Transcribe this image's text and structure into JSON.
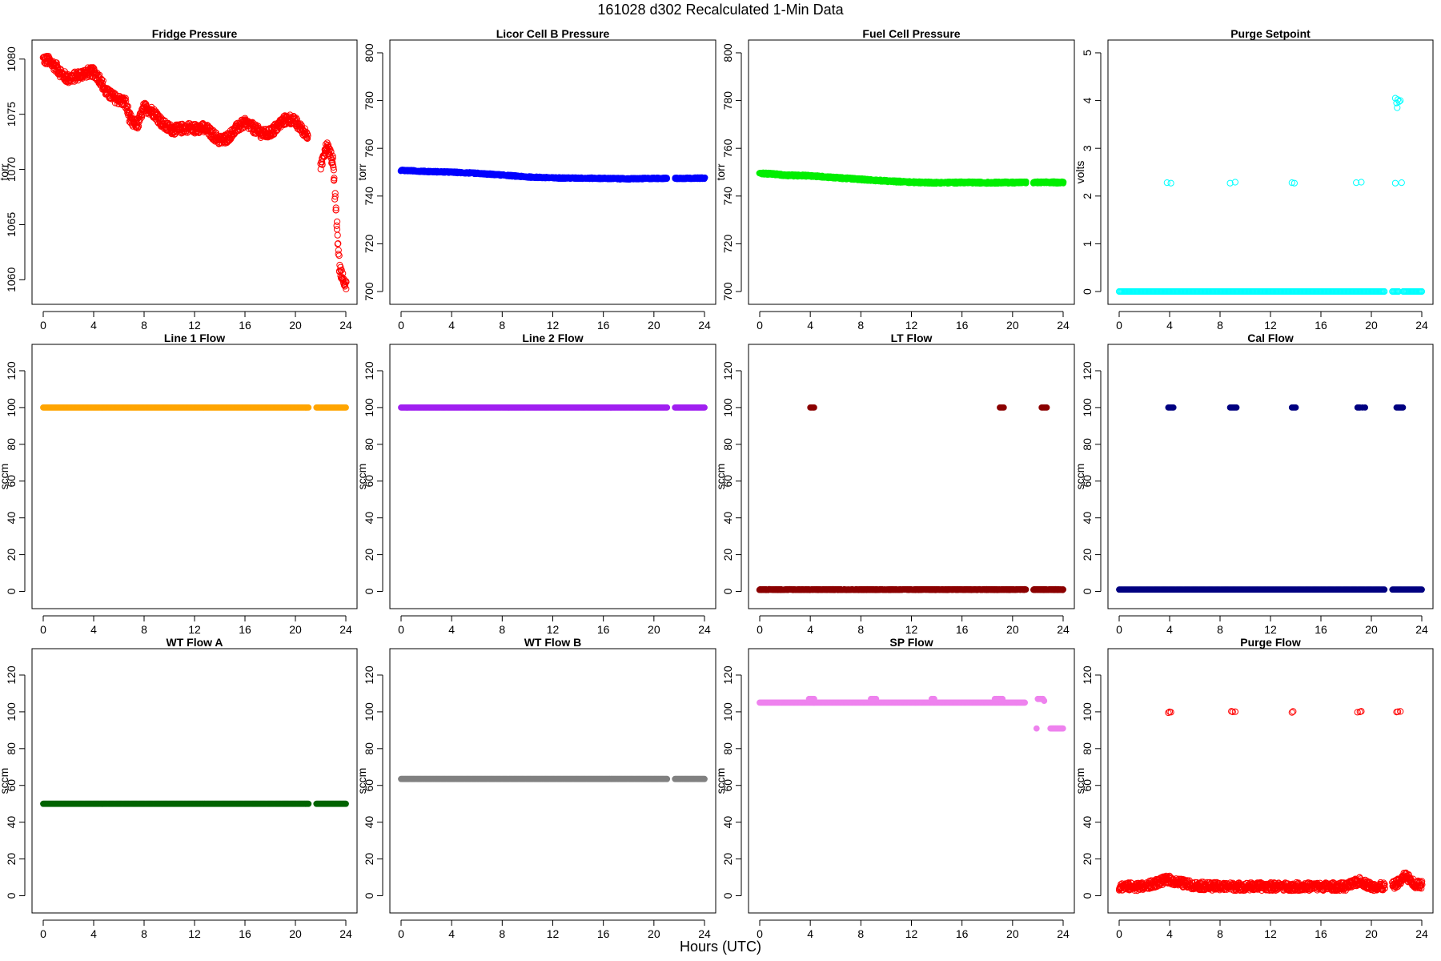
{
  "figure": {
    "title": "161028   d302   Recalculated 1-Min Data",
    "xlabel": "Hours (UTC)"
  },
  "chart_data": [
    {
      "type": "scatter",
      "title": "Fridge Pressure",
      "ylabel": "torr",
      "color": "#ff0000",
      "marker": "open-circle",
      "xlim": [
        0,
        24
      ],
      "ylim": [
        1058.5,
        1081
      ],
      "xticks": [
        0,
        4,
        8,
        12,
        16,
        20,
        24
      ],
      "yticks": [
        1060,
        1065,
        1070,
        1075,
        1080
      ],
      "series": [
        {
          "x": [
            0,
            0.5,
            1,
            1.5,
            2,
            2.5,
            3,
            3.5,
            4,
            4.5,
            5,
            5.5,
            6,
            6.5,
            7,
            7.5,
            8,
            8.5,
            9,
            9.5,
            10,
            10.5,
            11,
            11.5,
            12,
            12.5,
            13,
            13.5,
            14,
            14.5,
            15,
            15.5,
            16,
            16.5,
            17,
            17.5,
            18,
            18.5,
            19,
            19.5,
            20,
            20.5,
            21,
            21.5,
            22,
            22.5,
            23,
            23.5,
            24
          ],
          "y": [
            1080,
            1079.8,
            1079.3,
            1078.6,
            1078.2,
            1078.4,
            1078.6,
            1078.8,
            1078.8,
            1078.2,
            1077,
            1076.6,
            1076.3,
            1076.1,
            1074.2,
            1074.1,
            1075.6,
            1075.4,
            1074.9,
            1074.1,
            1073.7,
            1073.6,
            1073.7,
            1073.8,
            1073.7,
            1073.8,
            1073.6,
            1073.1,
            1072.6,
            1072.8,
            1073.3,
            1073.9,
            1074.2,
            1073.9,
            1073.5,
            1073.2,
            1073.3,
            1073.8,
            1074.4,
            1074.6,
            1074.3,
            1073.6,
            1073.2,
            null,
            1070.2,
            1072.2,
            1070.6,
            1061,
            1059.5
          ],
          "jitter": 0.45
        }
      ]
    },
    {
      "type": "scatter",
      "title": "Licor Cell B Pressure",
      "ylabel": "torr",
      "color": "#0000ff",
      "marker": "filled",
      "xlim": [
        0,
        24
      ],
      "ylim": [
        698,
        802
      ],
      "xticks": [
        0,
        4,
        8,
        12,
        16,
        20,
        24
      ],
      "yticks": [
        700,
        720,
        740,
        760,
        780,
        800
      ],
      "series": [
        {
          "x": [
            0,
            2,
            4,
            6,
            8,
            10,
            12,
            14,
            16,
            18,
            20,
            21,
            21.6,
            24
          ],
          "y": [
            750.8,
            750.3,
            750,
            749.5,
            748.8,
            748,
            747.6,
            747.5,
            747.4,
            747.2,
            747.4,
            747.4,
            747.4,
            747.5
          ],
          "gaps": [
            [
              21.05,
              21.6
            ]
          ],
          "jitter": 0.3
        }
      ]
    },
    {
      "type": "scatter",
      "title": "Fuel Cell Pressure",
      "ylabel": "torr",
      "color": "#00ee00",
      "marker": "filled",
      "xlim": [
        0,
        24
      ],
      "ylim": [
        698,
        802
      ],
      "xticks": [
        0,
        4,
        8,
        12,
        16,
        20,
        24
      ],
      "yticks": [
        700,
        720,
        740,
        760,
        780,
        800
      ],
      "series": [
        {
          "x": [
            0,
            1,
            2,
            4,
            6,
            8,
            10,
            12,
            14,
            16,
            18,
            20,
            21,
            21.6,
            24
          ],
          "y": [
            749.5,
            749.3,
            748.7,
            748.5,
            747.7,
            747,
            746.3,
            745.8,
            745.6,
            745.7,
            745.6,
            745.7,
            745.7,
            745.7,
            745.7
          ],
          "gaps": [
            [
              21.05,
              21.6
            ]
          ],
          "jitter": 0.4
        }
      ]
    },
    {
      "type": "scatter",
      "title": "Purge Setpoint",
      "ylabel": "volts",
      "color": "#00ffff",
      "marker": "open-circle",
      "xlim": [
        0,
        24
      ],
      "ylim": [
        -0.1,
        5.1
      ],
      "xticks": [
        0,
        4,
        8,
        12,
        16,
        20,
        24
      ],
      "yticks": [
        0,
        1,
        2,
        3,
        4,
        5
      ],
      "series": [
        {
          "x": [
            0,
            21,
            21.6,
            24
          ],
          "y": [
            0,
            0,
            0,
            0
          ],
          "gaps": [
            [
              21.05,
              21.6
            ],
            [
              22.2,
              22.5
            ]
          ],
          "jitter": 0
        },
        {
          "x": [
            3.8,
            4.1,
            8.8,
            9.2,
            13.7,
            13.9,
            18.8,
            19.2,
            21.9,
            22.4
          ],
          "y": [
            2.28,
            2.27,
            2.27,
            2.29,
            2.28,
            2.27,
            2.28,
            2.29,
            2.27,
            2.28
          ],
          "points": true
        },
        {
          "x": [
            21.9,
            22.0,
            22.1,
            22.2,
            22.3,
            22.05
          ],
          "y": [
            4.05,
            3.95,
            4.02,
            3.98,
            4.0,
            3.85
          ],
          "points": true
        }
      ]
    },
    {
      "type": "scatter",
      "title": "Line 1 Flow",
      "ylabel": "sccm",
      "color": "#ffa500",
      "marker": "filled",
      "xlim": [
        0,
        24
      ],
      "ylim": [
        -5,
        130
      ],
      "xticks": [
        0,
        4,
        8,
        12,
        16,
        20,
        24
      ],
      "yticks": [
        0,
        20,
        40,
        60,
        80,
        100,
        120
      ],
      "series": [
        {
          "x": [
            0,
            21,
            21.6,
            24
          ],
          "y": [
            100,
            100,
            100,
            100
          ],
          "gaps": [
            [
              21.05,
              21.6
            ]
          ],
          "jitter": 0
        }
      ]
    },
    {
      "type": "scatter",
      "title": "Line 2 Flow",
      "ylabel": "sccm",
      "color": "#a020f0",
      "marker": "filled",
      "xlim": [
        0,
        24
      ],
      "ylim": [
        -5,
        130
      ],
      "xticks": [
        0,
        4,
        8,
        12,
        16,
        20,
        24
      ],
      "yticks": [
        0,
        20,
        40,
        60,
        80,
        100,
        120
      ],
      "series": [
        {
          "x": [
            0,
            21,
            21.6,
            24
          ],
          "y": [
            100,
            100,
            100,
            100
          ],
          "gaps": [
            [
              21.05,
              21.6
            ]
          ],
          "jitter": 0
        }
      ]
    },
    {
      "type": "scatter",
      "title": "LT Flow",
      "ylabel": "sccm",
      "color": "#8b0000",
      "marker": "filled",
      "xlim": [
        0,
        24
      ],
      "ylim": [
        -5,
        130
      ],
      "xticks": [
        0,
        4,
        8,
        12,
        16,
        20,
        24
      ],
      "yticks": [
        0,
        20,
        40,
        60,
        80,
        100,
        120
      ],
      "series": [
        {
          "x": [
            0,
            21,
            21.6,
            24
          ],
          "y": [
            1,
            1,
            1,
            1
          ],
          "gaps": [
            [
              21.05,
              21.6
            ]
          ],
          "jitter": 0.2
        },
        {
          "x": [
            4.0,
            4.1,
            4.2,
            4.3,
            19.0,
            19.1,
            19.2,
            19.3,
            22.3,
            22.4,
            22.5,
            22.6,
            22.7
          ],
          "y": [
            100,
            100,
            100,
            100,
            100,
            100,
            100,
            100,
            100,
            100,
            100,
            100,
            100
          ],
          "points": true
        }
      ]
    },
    {
      "type": "scatter",
      "title": "Cal Flow",
      "ylabel": "sccm",
      "color": "#000080",
      "marker": "filled",
      "xlim": [
        0,
        24
      ],
      "ylim": [
        -5,
        130
      ],
      "xticks": [
        0,
        4,
        8,
        12,
        16,
        20,
        24
      ],
      "yticks": [
        0,
        20,
        40,
        60,
        80,
        100,
        120
      ],
      "series": [
        {
          "x": [
            0,
            21,
            21.6,
            24
          ],
          "y": [
            1,
            1,
            1,
            1
          ],
          "gaps": [
            [
              21.05,
              21.6
            ]
          ],
          "jitter": 0
        },
        {
          "x": [
            3.9,
            4.0,
            4.1,
            4.2,
            4.3,
            8.8,
            8.9,
            9.0,
            9.1,
            9.2,
            9.3,
            13.7,
            13.8,
            13.9,
            14.0,
            18.9,
            19.0,
            19.1,
            19.3,
            19.5,
            22.0,
            22.1,
            22.2,
            22.3,
            22.4,
            22.5
          ],
          "y": [
            100,
            100,
            100,
            100,
            100,
            100,
            100,
            100,
            100,
            100,
            100,
            100,
            100,
            100,
            100,
            100,
            100,
            100,
            100,
            100,
            100,
            100,
            100,
            100,
            100,
            100
          ],
          "points": true
        }
      ]
    },
    {
      "type": "scatter",
      "title": "WT Flow A",
      "ylabel": "sccm",
      "color": "#006400",
      "marker": "filled",
      "xlim": [
        0,
        24
      ],
      "ylim": [
        -5,
        130
      ],
      "xticks": [
        0,
        4,
        8,
        12,
        16,
        20,
        24
      ],
      "yticks": [
        0,
        20,
        40,
        60,
        80,
        100,
        120
      ],
      "series": [
        {
          "x": [
            0,
            21,
            21.6,
            24
          ],
          "y": [
            50,
            50,
            50,
            50
          ],
          "gaps": [
            [
              21.05,
              21.6
            ]
          ],
          "jitter": 0
        }
      ]
    },
    {
      "type": "scatter",
      "title": "WT Flow B",
      "ylabel": "sccm",
      "color": "#808080",
      "marker": "filled",
      "xlim": [
        0,
        24
      ],
      "ylim": [
        -5,
        130
      ],
      "xticks": [
        0,
        4,
        8,
        12,
        16,
        20,
        24
      ],
      "yticks": [
        0,
        20,
        40,
        60,
        80,
        100,
        120
      ],
      "series": [
        {
          "x": [
            0,
            21,
            21.6,
            24
          ],
          "y": [
            63.5,
            63.5,
            63.5,
            63.5
          ],
          "gaps": [
            [
              21.05,
              21.6
            ]
          ],
          "jitter": 0
        }
      ]
    },
    {
      "type": "scatter",
      "title": "SP Flow",
      "ylabel": "sccm",
      "color": "#ee82ee",
      "marker": "filled",
      "xlim": [
        0,
        24
      ],
      "ylim": [
        -5,
        130
      ],
      "xticks": [
        0,
        4,
        8,
        12,
        16,
        20,
        24
      ],
      "yticks": [
        0,
        20,
        40,
        60,
        80,
        100,
        120
      ],
      "series": [
        {
          "x": [
            0,
            21
          ],
          "y": [
            105,
            105
          ],
          "jitter": 0
        },
        {
          "x": [
            23.0,
            24.0
          ],
          "y": [
            91,
            91
          ],
          "jitter": 0
        },
        {
          "x": [
            3.9,
            4.0,
            4.1,
            4.2,
            4.3,
            8.8,
            8.9,
            9.0,
            9.1,
            9.2,
            13.6,
            13.7,
            13.8,
            18.6,
            18.7,
            18.8,
            18.9,
            19.0,
            19.1,
            19.2,
            22.0,
            22.1,
            22.2,
            22.3,
            22.4,
            22.5,
            21.9
          ],
          "y": [
            107,
            107,
            107,
            107,
            107,
            107,
            107,
            107,
            107,
            107,
            107,
            107,
            107,
            107,
            107,
            107,
            107,
            107,
            107,
            107,
            107,
            107,
            107,
            107,
            107,
            106,
            91
          ],
          "points": true
        }
      ]
    },
    {
      "type": "scatter",
      "title": "Purge Flow",
      "ylabel": "sccm",
      "color": "#ff0000",
      "marker": "open-circle",
      "xlim": [
        0,
        24
      ],
      "ylim": [
        -5,
        130
      ],
      "xticks": [
        0,
        4,
        8,
        12,
        16,
        20,
        24
      ],
      "yticks": [
        0,
        20,
        40,
        60,
        80,
        100,
        120
      ],
      "series": [
        {
          "x": [
            0,
            2,
            3.9,
            4.2,
            6,
            8,
            10,
            12,
            14,
            16,
            18,
            19.1,
            20,
            21,
            21.6,
            22.3,
            22.7,
            23.5,
            24
          ],
          "y": [
            5,
            5,
            9,
            8,
            5.5,
            5,
            5,
            5,
            5,
            5,
            5,
            8,
            5,
            5,
            5,
            8,
            11,
            6,
            6
          ],
          "gaps": [
            [
              21.05,
              21.6
            ]
          ],
          "jitter": 2.2
        },
        {
          "x": [
            3.9,
            4.0,
            4.1,
            8.9,
            9.0,
            9.2,
            13.7,
            13.8,
            18.9,
            19.1,
            19.2,
            22.0,
            22.1,
            22.3
          ],
          "y": [
            99.5,
            100,
            99.8,
            100.3,
            100,
            100.1,
            99.7,
            100.2,
            99.8,
            100,
            100.3,
            99.9,
            100.1,
            100.2
          ],
          "points": true
        }
      ]
    }
  ]
}
